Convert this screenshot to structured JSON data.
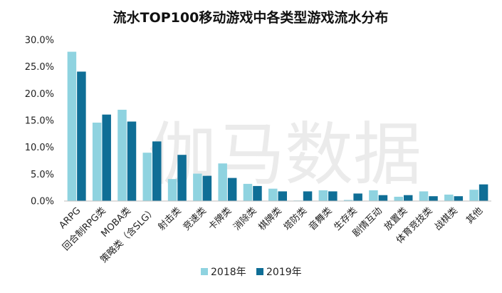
{
  "chart_data": {
    "type": "bar",
    "title": "流水TOP100移动游戏中各类型游戏流水分布",
    "categories": [
      "ARPG",
      "回合制RPG类",
      "MOBA类",
      "策略类（含SLG）",
      "射击类",
      "竞速类",
      "卡牌类",
      "消除类",
      "棋牌类",
      "塔防类",
      "音舞类",
      "生存类",
      "剧情互动",
      "放置类",
      "体育竞技类",
      "战棋类",
      "其他"
    ],
    "series": [
      {
        "name": "2018年",
        "color": "#8fd3e0",
        "values": [
          27.8,
          14.6,
          17.0,
          9.0,
          4.1,
          5.1,
          7.0,
          3.2,
          2.3,
          0.1,
          2.0,
          0.2,
          2.0,
          0.8,
          1.8,
          1.2,
          2.1
        ]
      },
      {
        "name": "2019年",
        "color": "#0f6e96",
        "values": [
          24.1,
          16.1,
          14.8,
          11.1,
          8.6,
          4.7,
          4.3,
          2.8,
          1.8,
          1.8,
          1.8,
          1.4,
          1.1,
          1.1,
          0.9,
          0.9,
          3.1
        ]
      }
    ],
    "y_ticks": [
      "0.0%",
      "5.0%",
      "10.0%",
      "15.0%",
      "20.0%",
      "25.0%",
      "30.0%"
    ],
    "ylim": [
      0,
      30
    ],
    "legend": [
      "2018年",
      "2019年"
    ],
    "watermark": "伽马数据"
  }
}
